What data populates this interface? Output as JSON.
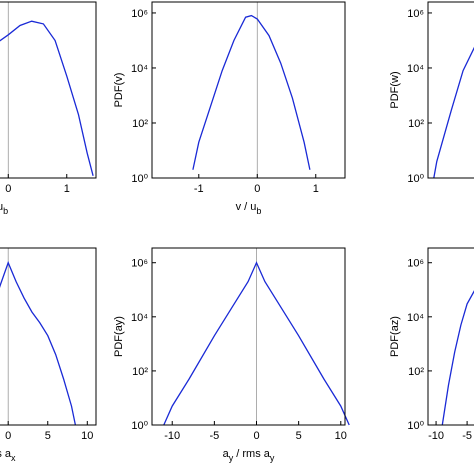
{
  "chart_data": [
    {
      "type": "line",
      "log_y": true,
      "color": "#1a2ad6",
      "xlim": [
        -1.8,
        1.5
      ],
      "ylim": [
        1,
        2500000
      ],
      "xticks": [
        0,
        1
      ],
      "xlabel": [
        {
          "text": "/ u"
        },
        {
          "sub": "b"
        }
      ],
      "x": [
        -0.2,
        0,
        0.2,
        0.4,
        0.6,
        0.8,
        1.0,
        1.2,
        1.35,
        1.45
      ],
      "values": [
        80000,
        160000,
        350000,
        500000,
        400000,
        100000,
        5000,
        200,
        8,
        1.2
      ]
    },
    {
      "type": "line",
      "log_y": true,
      "color": "#1a2ad6",
      "xlim": [
        -1.8,
        1.5
      ],
      "ylim": [
        1,
        2500000
      ],
      "xticks": [
        -1,
        0,
        1
      ],
      "yticks": [
        {
          "value": 1,
          "label": "10⁰"
        },
        {
          "value": 100,
          "label": "10²"
        },
        {
          "value": 10000,
          "label": "10⁴"
        },
        {
          "value": 1000000,
          "label": "10⁶"
        }
      ],
      "ylabel": "PDF(v)",
      "xlabel": [
        {
          "text": "v / u"
        },
        {
          "sub": "b"
        }
      ],
      "x": [
        -1.1,
        -1,
        -0.8,
        -0.6,
        -0.4,
        -0.2,
        -0.1,
        0,
        0.2,
        0.4,
        0.6,
        0.8,
        0.9
      ],
      "values": [
        2,
        20,
        400,
        8000,
        100000,
        700000,
        800000,
        600000,
        150000,
        15000,
        800,
        20,
        2
      ]
    },
    {
      "type": "line",
      "log_y": true,
      "color": "#1a2ad6",
      "xlim": [
        -1.8,
        1.5
      ],
      "ylim": [
        1,
        2500000
      ],
      "yticks": [
        {
          "value": 1,
          "label": "10⁰"
        },
        {
          "value": 100,
          "label": "10²"
        },
        {
          "value": 10000,
          "label": "10⁴"
        },
        {
          "value": 1000000,
          "label": "10⁶"
        }
      ],
      "ylabel": "PDF(w)",
      "x": [
        -1.7,
        -1.65,
        -1.4,
        -1.2,
        -1.0,
        -0.7,
        -0.3
      ],
      "values": [
        1,
        4,
        300,
        8000,
        60000,
        300000,
        800000
      ]
    },
    {
      "type": "line",
      "log_y": true,
      "color": "#1a2ad6",
      "xlim": [
        -13.3,
        11.1
      ],
      "ylim": [
        1,
        3500000
      ],
      "xticks": [
        0,
        5,
        10
      ],
      "xlabel": [
        {
          "text": "rms a"
        },
        {
          "sub": "x"
        }
      ],
      "x": [
        -2,
        -1,
        0,
        1,
        2,
        3,
        4,
        5,
        6,
        7,
        8,
        8.5
      ],
      "values": [
        20000,
        150000,
        1000000,
        200000,
        50000,
        15000,
        6000,
        2000,
        400,
        50,
        5,
        1
      ]
    },
    {
      "type": "line",
      "log_y": true,
      "color": "#1a2ad6",
      "xlim": [
        -12.4,
        10.5
      ],
      "ylim": [
        1,
        3500000
      ],
      "xticks": [
        -10,
        -5,
        0,
        5,
        10
      ],
      "yticks": [
        {
          "value": 1,
          "label": "10⁰"
        },
        {
          "value": 100,
          "label": "10²"
        },
        {
          "value": 10000,
          "label": "10⁴"
        },
        {
          "value": 1000000,
          "label": "10⁶"
        }
      ],
      "ylabel": "PDF(ay)",
      "xlabel": [
        {
          "text": "a"
        },
        {
          "sub": "y"
        },
        {
          "text": " / rms a"
        },
        {
          "sub": "y"
        }
      ],
      "x": [
        -11,
        -10,
        -8,
        -5,
        -3,
        -1,
        0,
        1,
        3,
        5,
        8,
        10,
        11
      ],
      "values": [
        1,
        5,
        50,
        2000,
        20000,
        200000,
        1000000,
        200000,
        20000,
        2000,
        50,
        5,
        1
      ]
    },
    {
      "type": "line",
      "log_y": true,
      "color": "#1a2ad6",
      "xlim": [
        -11.3,
        19.8
      ],
      "ylim": [
        1,
        3500000
      ],
      "xticks": [
        -10,
        -5
      ],
      "yticks": [
        {
          "value": 1,
          "label": "10⁰"
        },
        {
          "value": 100,
          "label": "10²"
        },
        {
          "value": 10000,
          "label": "10⁴"
        },
        {
          "value": 1000000,
          "label": "10⁶"
        }
      ],
      "ylabel": "PDF(az)",
      "x": [
        -9,
        -8,
        -7,
        -6,
        -5,
        -3,
        0
      ],
      "values": [
        1,
        30,
        500,
        5000,
        30000,
        200000,
        1000000
      ]
    }
  ]
}
